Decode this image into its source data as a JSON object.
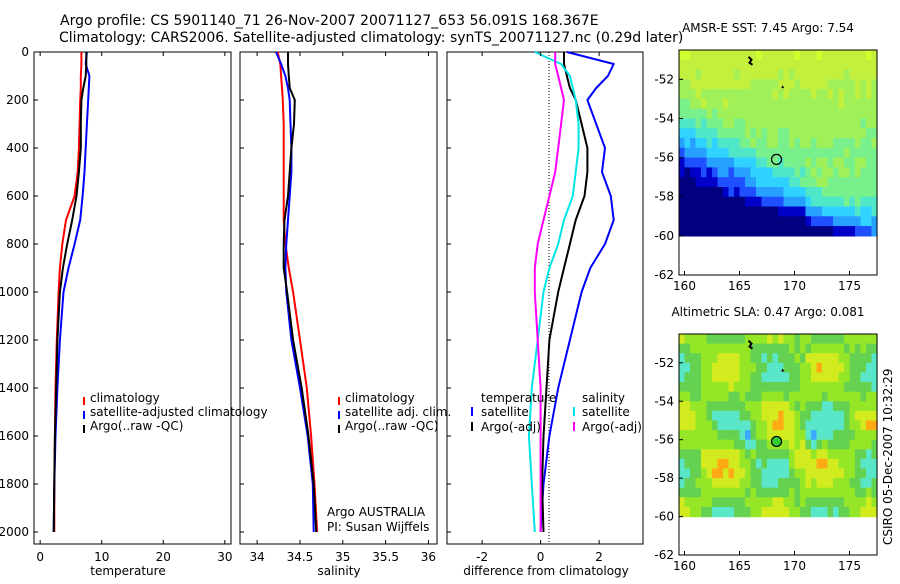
{
  "header": {
    "line1": "Argo profile: CS 5901140_71 26-Nov-2007 20071127_653 56.091S 168.367E",
    "line2": "Climatology: CARS2006. Satellite-adjusted climatology: synTS_20071127.nc (0.29d later)"
  },
  "side_stamp": "CSIRO 05-Dec-2007 10:32:29",
  "colors": {
    "red": "#ff0000",
    "blue": "#0000ff",
    "black": "#000000",
    "cyan": "#00e5e5",
    "magenta": "#ff00ff"
  },
  "chart_data": [
    {
      "id": "temperature",
      "type": "line",
      "xlabel": "temperature",
      "xlim": [
        -1,
        31
      ],
      "ylim": [
        2050,
        0
      ],
      "xticks": [
        "0",
        "10",
        "20",
        "30"
      ],
      "yticks": [
        "0",
        "200",
        "400",
        "600",
        "800",
        "1000",
        "1200",
        "1400",
        "1600",
        "1800",
        "2000"
      ],
      "y": [
        0,
        50,
        100,
        150,
        200,
        300,
        400,
        500,
        600,
        700,
        800,
        900,
        1000,
        1200,
        1400,
        1600,
        1800,
        2000
      ],
      "legend": {
        "position": "bottom-right",
        "entries": [
          "climatology",
          "satellite-adjusted climatology",
          "Argo(..raw -QC)"
        ]
      },
      "series": [
        {
          "name": "climatology",
          "color": "red",
          "x": [
            6.7,
            6.7,
            6.6,
            6.6,
            6.5,
            6.4,
            6.3,
            6.1,
            5.6,
            4.2,
            3.6,
            3.2,
            3.0,
            2.7,
            2.5,
            2.4,
            2.3,
            2.3
          ]
        },
        {
          "name": "satellite-adjusted climatology",
          "color": "blue",
          "x": [
            7.6,
            7.4,
            8.0,
            7.9,
            7.8,
            7.6,
            7.4,
            7.2,
            6.9,
            6.5,
            5.6,
            4.6,
            3.8,
            3.2,
            2.8,
            2.5,
            2.3,
            2.2
          ]
        },
        {
          "name": "Argo(..raw -QC)",
          "color": "black",
          "x": [
            7.5,
            7.5,
            7.4,
            7.0,
            6.7,
            6.6,
            6.6,
            6.3,
            5.9,
            5.2,
            4.4,
            3.7,
            3.2,
            2.8,
            2.6,
            2.4,
            2.3,
            2.2
          ]
        }
      ]
    },
    {
      "id": "salinity",
      "type": "line",
      "xlabel": "salinity",
      "xlim": [
        33.8,
        36.1
      ],
      "ylim": [
        2050,
        0
      ],
      "xticks": [
        "34",
        "34.5",
        "35",
        "35.5",
        "36"
      ],
      "yticks": [],
      "y": [
        0,
        50,
        100,
        150,
        200,
        300,
        400,
        500,
        600,
        700,
        800,
        900,
        1000,
        1200,
        1400,
        1600,
        1800,
        2000
      ],
      "legend": {
        "position": "bottom-right",
        "entries": [
          "climatology",
          "satellite adj. clim.",
          "Argo(..raw -QC)"
        ]
      },
      "annotation": [
        "Argo AUSTRALIA",
        "PI: Susan Wijffels"
      ],
      "series": [
        {
          "name": "climatology",
          "color": "red",
          "x": [
            34.24,
            34.27,
            34.28,
            34.29,
            34.3,
            34.31,
            34.31,
            34.31,
            34.31,
            34.31,
            34.33,
            34.37,
            34.42,
            34.5,
            34.58,
            34.63,
            34.67,
            34.7
          ]
        },
        {
          "name": "satellite adj. clim.",
          "color": "blue",
          "x": [
            34.22,
            34.28,
            34.33,
            34.36,
            34.38,
            34.39,
            34.4,
            34.4,
            34.38,
            34.36,
            34.34,
            34.33,
            34.34,
            34.4,
            34.5,
            34.59,
            34.65,
            34.66
          ]
        },
        {
          "name": "Argo(..raw -QC)",
          "color": "black",
          "x": [
            34.36,
            34.36,
            34.37,
            34.38,
            34.44,
            34.43,
            34.4,
            34.38,
            34.36,
            34.32,
            34.31,
            34.31,
            34.35,
            34.42,
            34.52,
            34.6,
            34.66,
            34.69
          ]
        }
      ]
    },
    {
      "id": "difference",
      "type": "line",
      "xlabel": "difference from climatology",
      "xlim": [
        -3.2,
        3.5
      ],
      "ylim": [
        2050,
        0
      ],
      "xticks": [
        "-2",
        "0",
        "2"
      ],
      "yticks": [],
      "y": [
        0,
        50,
        100,
        150,
        200,
        300,
        400,
        500,
        600,
        700,
        800,
        900,
        1000,
        1200,
        1400,
        1600,
        1800,
        2000
      ],
      "legend": {
        "position": "bottom",
        "groups": [
          "temperature",
          "salinity"
        ],
        "entries": [
          "satellite",
          "Argo(-adj)",
          "satellite",
          "Argo(-adj)"
        ]
      },
      "series": [
        {
          "name": "satellite",
          "group": "temperature",
          "color": "blue",
          "x": [
            0.9,
            2.5,
            2.3,
            1.9,
            1.6,
            1.9,
            2.2,
            2.1,
            2.4,
            2.5,
            2.2,
            1.7,
            1.4,
            1.0,
            0.6,
            0.3,
            0.1,
            0.0
          ]
        },
        {
          "name": "Argo(-adj)",
          "group": "temperature",
          "color": "black",
          "x": [
            0.8,
            0.8,
            0.9,
            1.0,
            1.2,
            1.4,
            1.6,
            1.6,
            1.5,
            1.2,
            1.0,
            0.8,
            0.6,
            0.3,
            0.2,
            0.1,
            0.05,
            0.1
          ]
        },
        {
          "name": "satellite",
          "group": "salinity",
          "color": "cyan",
          "x": [
            -0.2,
            0.7,
            1.0,
            1.1,
            1.2,
            1.3,
            1.3,
            1.2,
            1.1,
            0.8,
            0.6,
            0.3,
            0.1,
            -0.1,
            -0.3,
            -0.4,
            -0.3,
            -0.2
          ]
        },
        {
          "name": "Argo(-adj)",
          "group": "salinity",
          "color": "magenta",
          "x": [
            0.5,
            0.5,
            0.6,
            0.7,
            0.8,
            0.7,
            0.6,
            0.5,
            0.3,
            0.1,
            -0.1,
            -0.2,
            -0.2,
            -0.1,
            0.0,
            0.0,
            0.0,
            0.0
          ]
        }
      ]
    },
    {
      "id": "map-sst",
      "type": "heatmap",
      "title": "AMSR-E SST: 7.45 Argo: 7.54",
      "xlim": [
        159.5,
        177.5
      ],
      "ylim": [
        -62,
        -50.5
      ],
      "data_ylim": [
        -60,
        -50.5
      ],
      "xticks": [
        "160",
        "165",
        "170",
        "175"
      ],
      "yticks": [
        "-52",
        "-54",
        "-56",
        "-58",
        "-60",
        "-62"
      ],
      "marker": {
        "lon": 168.367,
        "lat": -56.091
      },
      "colors": [
        "#000080",
        "#0000c8",
        "#1e50ff",
        "#28a0ff",
        "#30d2ff",
        "#50e6c8",
        "#78f08c",
        "#a0f05a",
        "#c3f03c",
        "#d2ff30"
      ]
    },
    {
      "id": "map-sla",
      "type": "heatmap",
      "title": "Altimetric SLA: 0.47 Argo: 0.081",
      "xlim": [
        159.5,
        177.5
      ],
      "ylim": [
        -62,
        -50.5
      ],
      "data_ylim": [
        -60,
        -50.5
      ],
      "xticks": [
        "160",
        "165",
        "170",
        "175"
      ],
      "yticks": [
        "-52",
        "-54",
        "-56",
        "-58",
        "-60",
        "-62"
      ],
      "marker": {
        "lon": 168.367,
        "lat": -56.091
      },
      "colors": [
        "#0000a0",
        "#1e46ff",
        "#3caaff",
        "#5ae6c8",
        "#64d250",
        "#96e628",
        "#d2eb1e",
        "#ffaa14",
        "#ff641e",
        "#d2280a"
      ]
    }
  ]
}
